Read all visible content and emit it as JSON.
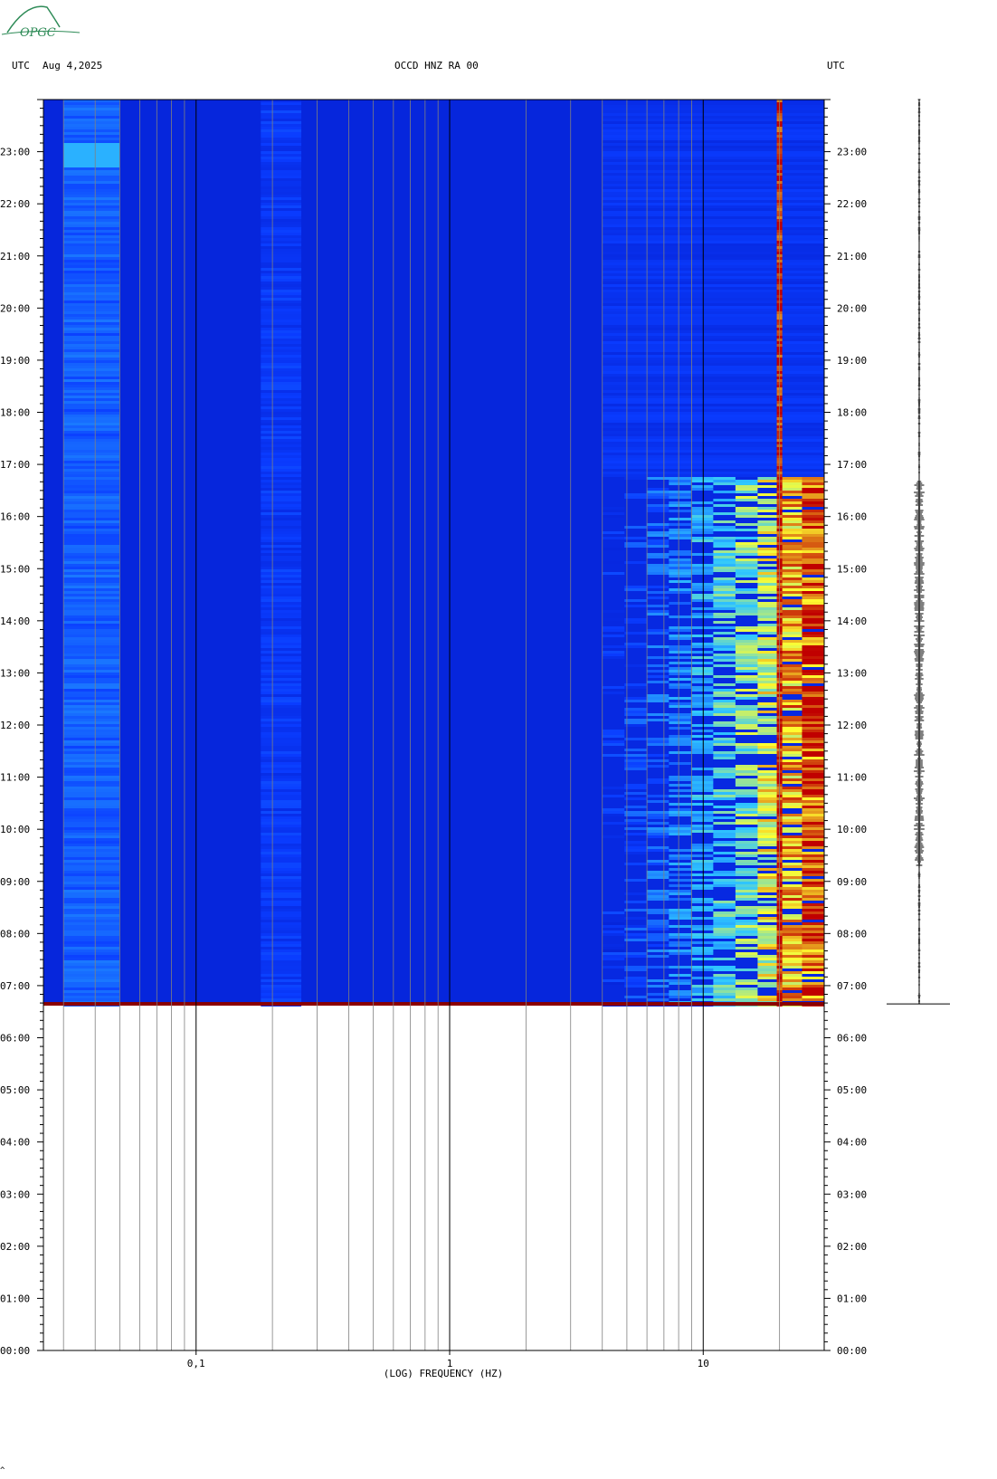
{
  "header": {
    "left_label": "UTC",
    "date": "Aug 4,2025",
    "station": "OCCD HNZ RA 00",
    "right_label": "UTC"
  },
  "logo": {
    "text": "OPGC",
    "color": "#2e8b57"
  },
  "footer_mark": "^",
  "chart_data": {
    "type": "heatmap",
    "title": "OCCD HNZ RA 00",
    "xlabel": "(LOG) FREQUENCY (HZ)",
    "ylabel": "UTC",
    "x_scale": "log",
    "xlim": [
      0.025,
      30
    ],
    "x_tick_labels": [
      {
        "value": 0.1,
        "label": "0,1"
      },
      {
        "value": 1,
        "label": "1"
      },
      {
        "value": 10,
        "label": "10"
      }
    ],
    "grid_minor_freqs": [
      0.03,
      0.04,
      0.05,
      0.06,
      0.07,
      0.08,
      0.09,
      0.2,
      0.3,
      0.4,
      0.5,
      0.6,
      0.7,
      0.8,
      0.9,
      2,
      3,
      4,
      5,
      6,
      7,
      8,
      9,
      20
    ],
    "grid_major_freqs": [
      0.1,
      1,
      10
    ],
    "ylim_hours": [
      0,
      24
    ],
    "y_tick_labels": [
      "00:00",
      "01:00",
      "02:00",
      "03:00",
      "04:00",
      "05:00",
      "06:00",
      "07:00",
      "08:00",
      "09:00",
      "10:00",
      "11:00",
      "12:00",
      "13:00",
      "14:00",
      "15:00",
      "16:00",
      "17:00",
      "18:00",
      "19:00",
      "20:00",
      "21:00",
      "22:00",
      "23:00"
    ],
    "data_start_hour": 6.65,
    "data_end_hour": 24,
    "colors": {
      "low": "#0000a0",
      "mid": "#0a3cff",
      "high": "#30c8ff",
      "peak": "#ffff30",
      "max": "#c00000",
      "start_line": "#8b0000"
    },
    "bands": [
      {
        "name": "low-frequency band",
        "f_min": 0.03,
        "f_max": 0.05,
        "level": 0.42
      },
      {
        "name": "microseism band",
        "f_min": 0.18,
        "f_max": 0.26,
        "level": 0.32
      },
      {
        "name": "high-frequency cultural noise",
        "f_min": 4,
        "f_max": 30,
        "level": 0.55,
        "active_hours": [
          6.65,
          16.8
        ],
        "peak_level": 0.95
      },
      {
        "name": "persistent line",
        "f_min": 19.5,
        "f_max": 20.5,
        "level": 0.98
      }
    ],
    "trace": {
      "active_hours": [
        9.3,
        16.7
      ],
      "start_hour": 6.65
    }
  }
}
